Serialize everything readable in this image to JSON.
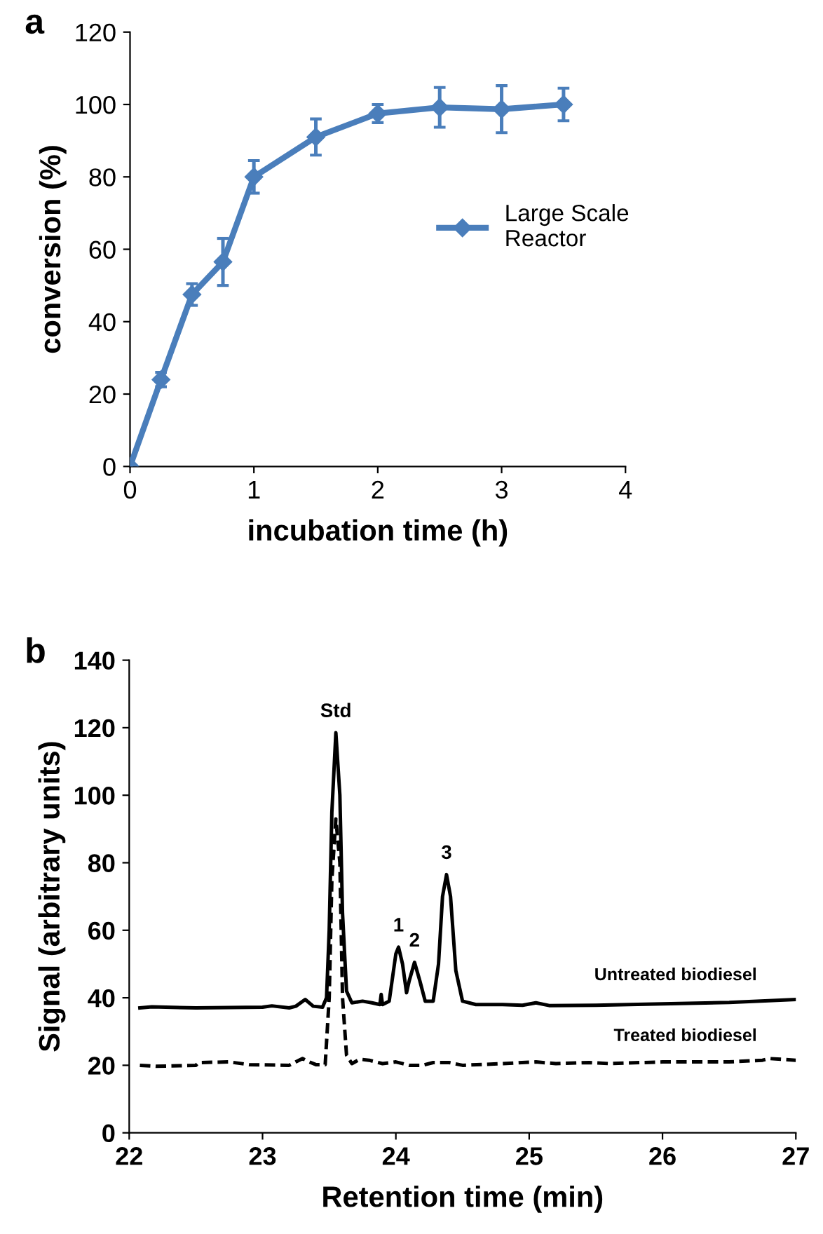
{
  "chart_data": [
    {
      "type": "line",
      "title": "a",
      "xlabel": "incubation time (h)",
      "ylabel": "conversion (%)",
      "x": [
        0,
        0.25,
        0.5,
        0.75,
        1,
        1.5,
        2,
        2.5,
        3,
        3.5
      ],
      "series": [
        {
          "name": "Large Scale\nReactor",
          "color": "#4a7ebb",
          "values": [
            0,
            24,
            47.5,
            56.5,
            80,
            91,
            97.5,
            99.2,
            98.7,
            100
          ],
          "errors": [
            null,
            2,
            3,
            6.5,
            4.5,
            5,
            2.5,
            5.5,
            6.5,
            4.5
          ]
        }
      ],
      "xlim": [
        0,
        4
      ],
      "xticks": [
        0,
        1,
        2,
        3,
        4
      ],
      "ylim": [
        0,
        120
      ],
      "yticks": [
        0,
        20,
        40,
        60,
        80,
        100,
        120
      ],
      "marker": "diamond",
      "line_style": "solid",
      "grid": false,
      "legend": "right"
    },
    {
      "type": "line",
      "title": "b",
      "xlabel": "Retention time (min)",
      "ylabel": "Signal (arbitrary units)",
      "series": [
        {
          "name": "Untreated biodiesel",
          "color": "#000000",
          "line_style": "solid",
          "x": [
            22.08,
            22.17,
            22.5,
            23.0,
            23.07,
            23.2,
            23.25,
            23.32,
            23.38,
            23.45,
            23.48,
            23.5,
            23.52,
            23.55,
            23.58,
            23.6,
            23.63,
            23.67,
            23.75,
            23.82,
            23.88,
            23.89,
            23.9,
            23.95,
            24.0,
            24.02,
            24.05,
            24.08,
            24.1,
            24.14,
            24.18,
            24.22,
            24.28,
            24.32,
            24.35,
            24.38,
            24.41,
            24.45,
            24.5,
            24.6,
            24.8,
            24.95,
            25.05,
            25.15,
            25.5,
            26.0,
            26.5,
            27.0
          ],
          "values": [
            37,
            37.3,
            37,
            37.2,
            37.6,
            37,
            37.5,
            39.5,
            37.5,
            37.2,
            40,
            60,
            95,
            118.5,
            100,
            65,
            42,
            38.5,
            39,
            38.5,
            38,
            41,
            38,
            39,
            53,
            55,
            50,
            41.5,
            45,
            50.5,
            45,
            39,
            39,
            50,
            70,
            76.5,
            70,
            48,
            39,
            38,
            38,
            37.8,
            38.5,
            37.7,
            37.8,
            38.2,
            38.6,
            39.5
          ]
        },
        {
          "name": "Treated biodiesel",
          "color": "#000000",
          "line_style": "dashed",
          "x": [
            22.08,
            22.2,
            22.5,
            22.52,
            22.75,
            22.9,
            23.2,
            23.3,
            23.35,
            23.4,
            23.47,
            23.5,
            23.52,
            23.55,
            23.58,
            23.6,
            23.63,
            23.67,
            23.73,
            23.8,
            23.9,
            24.0,
            24.1,
            24.2,
            24.28,
            24.4,
            24.5,
            24.8,
            25.05,
            25.2,
            25.45,
            25.6,
            26.0,
            26.5,
            26.75,
            26.8,
            27.0
          ],
          "values": [
            20,
            19.7,
            20,
            20.8,
            21,
            20.2,
            20,
            22,
            21,
            20.2,
            20.2,
            40,
            75,
            93,
            80,
            40,
            23,
            20.5,
            21.8,
            21.5,
            20.5,
            21,
            20,
            20,
            20.8,
            20.8,
            20,
            20.5,
            21,
            20.5,
            20.8,
            20.5,
            21,
            21,
            21.5,
            22,
            21.5
          ]
        }
      ],
      "annotations": [
        {
          "text": "Std",
          "x": 23.55,
          "y": 118.5
        },
        {
          "text": "1",
          "x": 24.02,
          "y": 55
        },
        {
          "text": "2",
          "x": 24.14,
          "y": 50.5
        },
        {
          "text": "3",
          "x": 24.38,
          "y": 76.5
        }
      ],
      "xlim": [
        22,
        27
      ],
      "xticks": [
        22,
        23,
        24,
        25,
        26,
        27
      ],
      "ylim": [
        0,
        140
      ],
      "yticks": [
        0,
        20,
        40,
        60,
        80,
        100,
        120,
        140
      ],
      "marker": "none",
      "grid": false,
      "legend": false
    }
  ]
}
